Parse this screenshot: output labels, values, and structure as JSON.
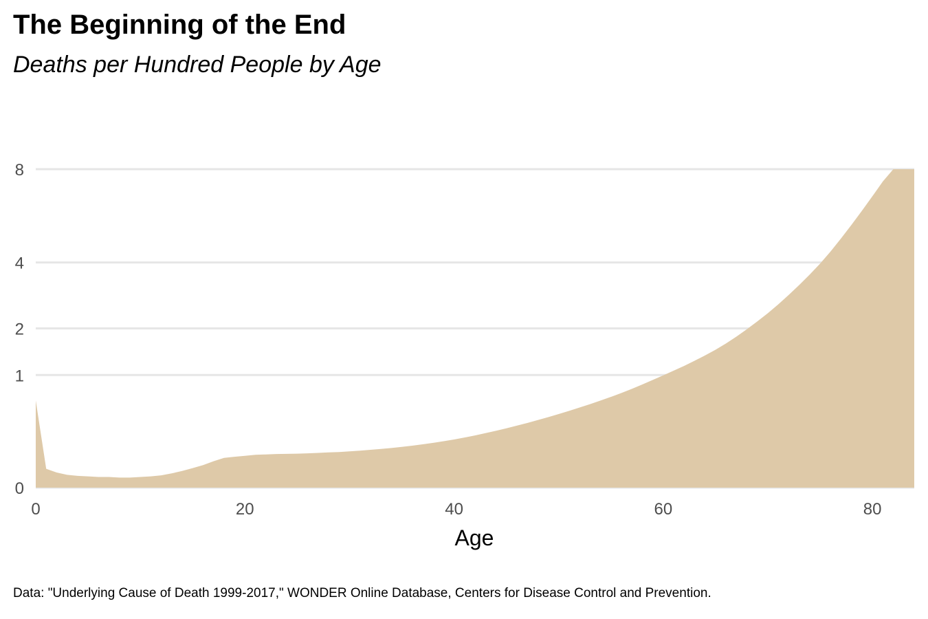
{
  "chart_data": {
    "type": "area",
    "title": "The Beginning of the End",
    "subtitle": "Deaths per Hundred People by Age",
    "xlabel": "Age",
    "ylabel": "",
    "caption": "Data: \"Underlying Cause of Death 1999-2017,\" WONDER Online Database, Centers for Disease Control and Prevention.",
    "xlim": [
      0,
      84
    ],
    "ylim": [
      0,
      8
    ],
    "y_scale": "sqrt",
    "x_ticks": [
      0,
      20,
      40,
      60,
      80
    ],
    "y_ticks": [
      0,
      1,
      2,
      4,
      8
    ],
    "grid": "horizontal",
    "fill_color": "#dec9a8",
    "grid_color": "#e6e6e6",
    "series": [
      {
        "name": "Deaths per hundred",
        "x": [
          0,
          1,
          2,
          3,
          4,
          5,
          6,
          7,
          8,
          9,
          10,
          11,
          12,
          13,
          14,
          15,
          16,
          17,
          18,
          19,
          20,
          21,
          22,
          23,
          24,
          25,
          26,
          27,
          28,
          29,
          30,
          31,
          32,
          33,
          34,
          35,
          36,
          37,
          38,
          39,
          40,
          41,
          42,
          43,
          44,
          45,
          46,
          47,
          48,
          49,
          50,
          51,
          52,
          53,
          54,
          55,
          56,
          57,
          58,
          59,
          60,
          61,
          62,
          63,
          64,
          65,
          66,
          67,
          68,
          69,
          70,
          71,
          72,
          73,
          74,
          75,
          76,
          77,
          78,
          79,
          80,
          81,
          82,
          83,
          84
        ],
        "values": [
          0.6,
          0.028,
          0.018,
          0.013,
          0.011,
          0.01,
          0.009,
          0.009,
          0.008,
          0.008,
          0.009,
          0.01,
          0.012,
          0.016,
          0.022,
          0.03,
          0.04,
          0.055,
          0.07,
          0.075,
          0.08,
          0.085,
          0.087,
          0.089,
          0.09,
          0.091,
          0.093,
          0.095,
          0.098,
          0.1,
          0.104,
          0.108,
          0.113,
          0.118,
          0.124,
          0.131,
          0.139,
          0.148,
          0.158,
          0.17,
          0.183,
          0.198,
          0.215,
          0.234,
          0.255,
          0.278,
          0.303,
          0.33,
          0.36,
          0.392,
          0.427,
          0.465,
          0.506,
          0.55,
          0.598,
          0.65,
          0.707,
          0.77,
          0.84,
          0.915,
          0.995,
          1.08,
          1.17,
          1.27,
          1.38,
          1.5,
          1.64,
          1.8,
          1.98,
          2.18,
          2.4,
          2.65,
          2.93,
          3.24,
          3.58,
          3.96,
          4.4,
          4.9,
          5.45,
          6.05,
          6.7,
          7.4,
          8.0,
          8.0,
          8.0
        ]
      }
    ]
  }
}
